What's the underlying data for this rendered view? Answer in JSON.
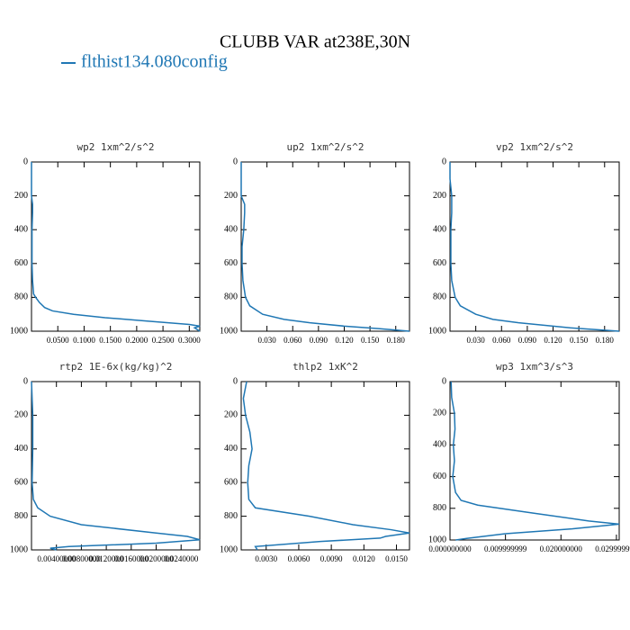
{
  "title": "CLUBB VAR at238E,30N",
  "legend": {
    "name": "flthist134.080config",
    "color": "#1f77b4"
  },
  "chart_data": [
    {
      "type": "line",
      "title": "wp2  1xm^2/s^2",
      "color": "#1f77b4",
      "y": [
        0,
        100,
        200,
        250,
        300,
        400,
        500,
        600,
        700,
        780,
        800,
        830,
        860,
        880,
        900,
        920,
        940,
        960,
        970,
        980,
        1000
      ],
      "values": [
        0,
        0,
        0,
        0.002,
        0.002,
        0.001,
        0.001,
        0.001,
        0.002,
        0.004,
        0.008,
        0.015,
        0.025,
        0.04,
        0.08,
        0.14,
        0.22,
        0.3,
        0.32,
        0.31,
        0.32
      ],
      "xlim": [
        0,
        0.32
      ],
      "ylim": [
        0,
        1000
      ],
      "yinvert": true,
      "xticks": [
        {
          "value": 0.05,
          "label": "0.0500"
        },
        {
          "value": 0.1,
          "label": "0.1000"
        },
        {
          "value": 0.15,
          "label": "0.1500"
        },
        {
          "value": 0.2,
          "label": "0.2000"
        },
        {
          "value": 0.25,
          "label": "0.2500"
        },
        {
          "value": 0.3,
          "label": "0.3000"
        }
      ],
      "yticks": [
        0,
        200,
        400,
        600,
        800,
        1000
      ]
    },
    {
      "type": "line",
      "title": "up2  1xm^2/s^2",
      "color": "#1f77b4",
      "y": [
        0,
        100,
        200,
        250,
        300,
        400,
        500,
        600,
        700,
        800,
        850,
        900,
        930,
        950,
        970,
        985,
        1000
      ],
      "values": [
        0,
        0,
        0,
        0.004,
        0.004,
        0.003,
        0.001,
        0.001,
        0.002,
        0.005,
        0.01,
        0.025,
        0.05,
        0.08,
        0.12,
        0.16,
        0.196
      ],
      "xlim": [
        0,
        0.196
      ],
      "ylim": [
        0,
        1000
      ],
      "yinvert": true,
      "xticks": [
        {
          "value": 0.03,
          "label": "0.030"
        },
        {
          "value": 0.06,
          "label": "0.060"
        },
        {
          "value": 0.09,
          "label": "0.090"
        },
        {
          "value": 0.12,
          "label": "0.120"
        },
        {
          "value": 0.15,
          "label": "0.150"
        },
        {
          "value": 0.18,
          "label": "0.180"
        }
      ],
      "yticks": [
        0,
        200,
        400,
        600,
        800,
        1000
      ]
    },
    {
      "type": "line",
      "title": "vp2  1xm^2/s^2",
      "color": "#1f77b4",
      "y": [
        0,
        100,
        200,
        300,
        400,
        500,
        600,
        700,
        800,
        850,
        900,
        930,
        950,
        980,
        1000
      ],
      "values": [
        0,
        0,
        0.002,
        0.002,
        0.001,
        0.001,
        0.001,
        0.002,
        0.006,
        0.012,
        0.03,
        0.05,
        0.08,
        0.14,
        0.197
      ],
      "xlim": [
        0,
        0.197
      ],
      "ylim": [
        0,
        1000
      ],
      "yinvert": true,
      "xticks": [
        {
          "value": 0.03,
          "label": "0.030"
        },
        {
          "value": 0.06,
          "label": "0.060"
        },
        {
          "value": 0.09,
          "label": "0.090"
        },
        {
          "value": 0.12,
          "label": "0.120"
        },
        {
          "value": 0.15,
          "label": "0.150"
        },
        {
          "value": 0.18,
          "label": "0.180"
        }
      ],
      "yticks": [
        0,
        200,
        400,
        600,
        800,
        1000
      ]
    },
    {
      "type": "line",
      "title": "rtp2  1E-6x(kg/kg)^2",
      "color": "#1f77b4",
      "y": [
        0,
        200,
        400,
        600,
        700,
        750,
        800,
        850,
        900,
        920,
        940,
        960,
        980,
        990,
        1000
      ],
      "values": [
        0,
        0.0002,
        0.0002,
        0.0001,
        0.0003,
        0.001,
        0.003,
        0.008,
        0.02,
        0.025,
        0.027,
        0.02,
        0.006,
        0.003,
        0.004
      ],
      "xlim": [
        0,
        0.027
      ],
      "ylim": [
        0,
        1000
      ],
      "yinvert": true,
      "xticks": [
        {
          "value": 0.004,
          "label": "0.00400000"
        },
        {
          "value": 0.008,
          "label": "0.00800000"
        },
        {
          "value": 0.012,
          "label": "0.0120000"
        },
        {
          "value": 0.016,
          "label": "0.0160000"
        },
        {
          "value": 0.02,
          "label": "0.0200000"
        },
        {
          "value": 0.024,
          "label": "0.0240000"
        }
      ],
      "yticks": [
        0,
        200,
        400,
        600,
        800,
        1000
      ]
    },
    {
      "type": "line",
      "title": "thlp2  1xK^2",
      "color": "#1f77b4",
      "y": [
        0,
        100,
        200,
        300,
        400,
        500,
        600,
        700,
        750,
        800,
        850,
        880,
        900,
        920,
        930,
        950,
        980,
        1000
      ],
      "values": [
        0.0012,
        0.0009,
        0.0011,
        0.0015,
        0.0017,
        0.0014,
        0.0013,
        0.0014,
        0.002,
        0.007,
        0.011,
        0.0145,
        0.0162,
        0.014,
        0.0135,
        0.008,
        0.002,
        0.0022
      ],
      "xlim": [
        0.0007,
        0.0162
      ],
      "ylim": [
        0,
        1000
      ],
      "yinvert": true,
      "xticks": [
        {
          "value": 0.003,
          "label": "0.0030"
        },
        {
          "value": 0.006,
          "label": "0.0060"
        },
        {
          "value": 0.009,
          "label": "0.0090"
        },
        {
          "value": 0.012,
          "label": "0.0120"
        },
        {
          "value": 0.015,
          "label": "0.0150"
        }
      ],
      "yticks": [
        0,
        200,
        400,
        600,
        800,
        1000
      ]
    },
    {
      "type": "line",
      "title": "wp3  1xm^3/s^3",
      "color": "#1f77b4",
      "y": [
        0,
        100,
        200,
        300,
        400,
        500,
        600,
        700,
        750,
        780,
        830,
        880,
        900,
        930,
        960,
        990,
        1000
      ],
      "values": [
        0.0002,
        0.0003,
        0.0008,
        0.0009,
        0.0006,
        0.0008,
        0.0005,
        0.001,
        0.002,
        0.005,
        0.015,
        0.025,
        0.0305,
        0.022,
        0.01,
        0.003,
        0.001
      ],
      "xlim": [
        0,
        0.0305
      ],
      "ylim": [
        0,
        1000
      ],
      "yinvert": true,
      "xticks": [
        {
          "value": 0,
          "label": "0.000000000"
        },
        {
          "value": 0.009999999,
          "label": "0.009999999"
        },
        {
          "value": 0.02,
          "label": "0.020000000"
        },
        {
          "value": 0.029999999,
          "label": "0.029999999"
        }
      ],
      "yticks": [
        0,
        200,
        400,
        600,
        800,
        1000
      ]
    }
  ]
}
